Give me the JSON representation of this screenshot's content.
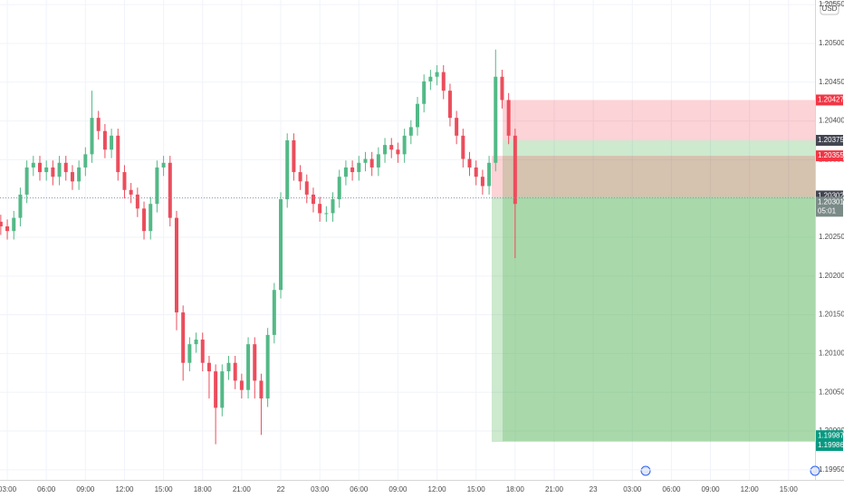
{
  "chart_data": {
    "type": "candlestick",
    "currency": "USD",
    "up_color": "#53b987",
    "down_color": "#eb4d5c",
    "xlim": [
      2.44,
      65.03
    ],
    "ylim": [
      1.19937,
      1.20556
    ],
    "xticks": [
      {
        "value": 3,
        "label": "03:00"
      },
      {
        "value": 6,
        "label": "06:00"
      },
      {
        "value": 9,
        "label": "09:00"
      },
      {
        "value": 12,
        "label": "12:00"
      },
      {
        "value": 15,
        "label": "15:00"
      },
      {
        "value": 18,
        "label": "18:00"
      },
      {
        "value": 21,
        "label": "21:00"
      },
      {
        "value": 24,
        "label": "22"
      },
      {
        "value": 27,
        "label": "03:00"
      },
      {
        "value": 30,
        "label": "06:00"
      },
      {
        "value": 33,
        "label": "09:00"
      },
      {
        "value": 36,
        "label": "12:00"
      },
      {
        "value": 39,
        "label": "15:00"
      },
      {
        "value": 42,
        "label": "18:00"
      },
      {
        "value": 45,
        "label": "21:00"
      },
      {
        "value": 48,
        "label": "23"
      },
      {
        "value": 51,
        "label": "03:00"
      },
      {
        "value": 54,
        "label": "06:00"
      },
      {
        "value": 57,
        "label": "09:00"
      },
      {
        "value": 60,
        "label": "12:00"
      },
      {
        "value": 63,
        "label": "15:00"
      }
    ],
    "yticks": [
      {
        "value": 1.1995,
        "label": "1.19950"
      },
      {
        "value": 1.2,
        "label": "1.20000"
      },
      {
        "value": 1.2005,
        "label": "1.20050"
      },
      {
        "value": 1.201,
        "label": "1.20100"
      },
      {
        "value": 1.2015,
        "label": "1.20150"
      },
      {
        "value": 1.202,
        "label": "1.20200"
      },
      {
        "value": 1.2025,
        "label": "1.20250"
      },
      {
        "value": 1.203,
        "label": "1.20300"
      },
      {
        "value": 1.2035,
        "label": "1.20350"
      },
      {
        "value": 1.204,
        "label": "1.20400"
      },
      {
        "value": 1.2045,
        "label": "1.20450"
      },
      {
        "value": 1.205,
        "label": "1.20500"
      },
      {
        "value": 1.2055,
        "label": "1.20550"
      }
    ],
    "grid": true,
    "x": [
      2.5,
      3,
      3.5,
      4,
      4.5,
      5,
      5.5,
      6,
      6.5,
      7,
      7.5,
      8,
      8.5,
      9,
      9.5,
      10,
      10.5,
      11,
      11.5,
      12,
      12.5,
      13,
      13.5,
      14,
      14.5,
      15,
      15.5,
      16,
      16.5,
      17,
      17.5,
      18,
      18.5,
      19,
      19.5,
      20,
      20.5,
      21,
      21.5,
      22,
      22.5,
      23,
      23.5,
      24,
      24.5,
      25,
      25.5,
      26,
      26.5,
      27,
      27.5,
      28,
      28.5,
      29,
      29.5,
      30,
      30.5,
      31,
      31.5,
      32,
      32.5,
      33,
      33.5,
      34,
      34.5,
      35,
      35.5,
      36,
      36.5,
      37,
      37.5,
      38,
      38.5,
      39,
      39.5,
      40,
      40.5,
      41,
      41.5,
      42
    ],
    "open": [
      1.2027,
      1.20264,
      1.20258,
      1.20275,
      1.20305,
      1.2034,
      1.20346,
      1.20334,
      1.2034,
      1.20328,
      1.20346,
      1.20334,
      1.20322,
      1.2034,
      1.20357,
      1.20404,
      1.20387,
      1.20363,
      1.20381,
      1.20334,
      1.20311,
      1.20305,
      1.20287,
      1.20258,
      1.20293,
      1.2034,
      1.20346,
      1.20275,
      1.20153,
      1.20088,
      1.20112,
      1.20118,
      1.20088,
      1.20077,
      1.2003,
      1.20077,
      1.20088,
      1.20065,
      1.20053,
      1.20112,
      1.20065,
      1.20042,
      1.20124,
      1.20182,
      1.20299,
      1.20375,
      1.20334,
      1.20322,
      1.20305,
      1.20293,
      1.20281,
      1.20281,
      1.20299,
      1.20328,
      1.2034,
      1.20334,
      1.20346,
      1.20351,
      1.2034,
      1.20357,
      1.20369,
      1.20363,
      1.20357,
      1.20381,
      1.20392,
      1.20422,
      1.20451,
      1.20457,
      1.20463,
      1.20439,
      1.20404,
      1.20381,
      1.20351,
      1.2034,
      1.20328,
      1.20316,
      1.20346,
      1.20457,
      1.20427,
      1.20381
    ],
    "high": [
      1.20279,
      1.20273,
      1.20284,
      1.20314,
      1.20349,
      1.20355,
      1.20355,
      1.20349,
      1.20349,
      1.20355,
      1.20355,
      1.20343,
      1.20349,
      1.20366,
      1.20439,
      1.20413,
      1.20396,
      1.2039,
      1.2039,
      1.20343,
      1.2032,
      1.20314,
      1.20296,
      1.20302,
      1.20349,
      1.20355,
      1.20355,
      1.20284,
      1.20162,
      1.20121,
      1.20127,
      1.20127,
      1.20097,
      1.20086,
      1.20086,
      1.20097,
      1.20097,
      1.20074,
      1.20121,
      1.20121,
      1.20074,
      1.20133,
      1.20191,
      1.20308,
      1.20384,
      1.20384,
      1.20343,
      1.20331,
      1.20314,
      1.20302,
      1.2029,
      1.20308,
      1.20337,
      1.20349,
      1.20349,
      1.20355,
      1.2036,
      1.2036,
      1.20366,
      1.20378,
      1.20378,
      1.20372,
      1.2039,
      1.20401,
      1.20431,
      1.2046,
      1.20466,
      1.20472,
      1.20472,
      1.20448,
      1.20413,
      1.2039,
      1.2036,
      1.20349,
      1.20337,
      1.20355,
      1.20492,
      1.20466,
      1.20436,
      1.2039
    ],
    "low": [
      1.20253,
      1.20247,
      1.20247,
      1.20264,
      1.20294,
      1.20329,
      1.20323,
      1.20323,
      1.20317,
      1.20317,
      1.20323,
      1.20311,
      1.20311,
      1.20329,
      1.20346,
      1.20376,
      1.20352,
      1.20352,
      1.20323,
      1.203,
      1.20294,
      1.20276,
      1.20247,
      1.20247,
      1.20282,
      1.20329,
      1.20264,
      1.2013,
      1.20065,
      1.20077,
      1.20101,
      1.20077,
      1.20042,
      1.19983,
      1.20019,
      1.20066,
      1.20054,
      1.20042,
      1.20042,
      1.20042,
      1.19995,
      1.20031,
      1.20113,
      1.20171,
      1.20288,
      1.20323,
      1.20311,
      1.20294,
      1.20282,
      1.2027,
      1.2027,
      1.2027,
      1.20288,
      1.20317,
      1.20323,
      1.20323,
      1.20335,
      1.20329,
      1.20329,
      1.20346,
      1.20352,
      1.20346,
      1.20346,
      1.2037,
      1.20381,
      1.20411,
      1.2044,
      1.20446,
      1.20428,
      1.20393,
      1.2037,
      1.2034,
      1.20329,
      1.20317,
      1.20305,
      1.20305,
      1.20335,
      1.20416,
      1.2037,
      1.20223
    ],
    "close": [
      1.20264,
      1.20258,
      1.20275,
      1.20305,
      1.2034,
      1.20346,
      1.20334,
      1.2034,
      1.20328,
      1.20346,
      1.20334,
      1.20322,
      1.2034,
      1.20357,
      1.20404,
      1.20387,
      1.20363,
      1.20381,
      1.20334,
      1.20311,
      1.20305,
      1.20287,
      1.20258,
      1.20293,
      1.2034,
      1.20346,
      1.20275,
      1.20153,
      1.20088,
      1.20112,
      1.20118,
      1.20088,
      1.20077,
      1.2003,
      1.20077,
      1.20088,
      1.20065,
      1.20053,
      1.20112,
      1.20065,
      1.20042,
      1.20124,
      1.20182,
      1.20299,
      1.20375,
      1.20334,
      1.20322,
      1.20305,
      1.20293,
      1.20281,
      1.20281,
      1.20299,
      1.20328,
      1.2034,
      1.20334,
      1.20346,
      1.20351,
      1.2034,
      1.20357,
      1.20369,
      1.20363,
      1.20357,
      1.20381,
      1.20392,
      1.20422,
      1.20451,
      1.20457,
      1.20463,
      1.20439,
      1.20404,
      1.20381,
      1.20351,
      1.2034,
      1.20328,
      1.20316,
      1.20346,
      1.20457,
      1.20427,
      1.20381,
      1.20293
    ],
    "positions": [
      {
        "start": 41.04,
        "entry": 1.20375,
        "stop": 1.20427,
        "target": 1.19987,
        "stop_color": "#f23645",
        "entry_color": "#434651",
        "target_color": "#089981"
      },
      {
        "start": 40.2,
        "entry": 1.20302,
        "stop": 1.20355,
        "target": 1.19986,
        "stop_color": "#f23645",
        "entry_color": "#434651",
        "target_color": "#089981"
      }
    ],
    "last_price": 1.20301,
    "countdown": "05:01",
    "last_color": "#7a8a87"
  }
}
